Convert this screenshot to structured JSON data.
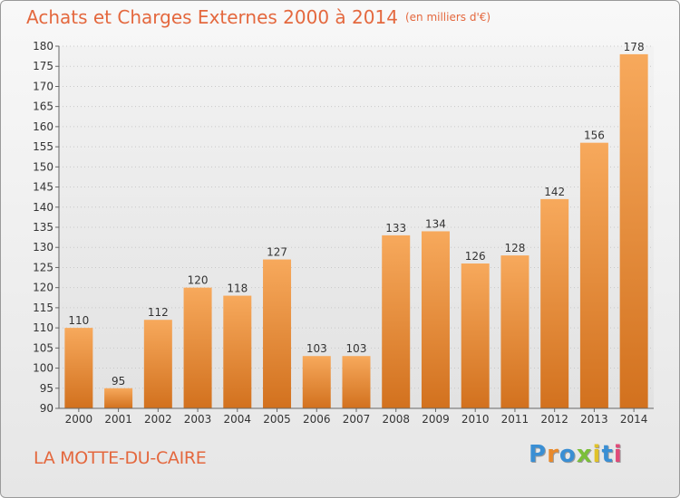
{
  "header": {
    "title": "Achats et Charges Externes 2000 à 2014",
    "unit": "(en milliers d'€)"
  },
  "footer": {
    "city": "LA MOTTE-DU-CAIRE",
    "logo_text": "Proxiti",
    "logo_colors": [
      "#3a8fd4",
      "#e98a2c",
      "#3a8fd4",
      "#7bbf3a",
      "#e0c22a",
      "#3a8fd4",
      "#e04a7a"
    ]
  },
  "chart_data": {
    "type": "bar",
    "title": "Achats et Charges Externes 2000 à 2014",
    "categories": [
      "2000",
      "2001",
      "2002",
      "2003",
      "2004",
      "2005",
      "2006",
      "2007",
      "2008",
      "2009",
      "2010",
      "2011",
      "2012",
      "2013",
      "2014"
    ],
    "values": [
      110,
      95,
      112,
      120,
      118,
      127,
      103,
      103,
      133,
      134,
      126,
      128,
      142,
      156,
      178
    ],
    "ylim": [
      90,
      180
    ],
    "yticks": [
      90,
      95,
      100,
      105,
      110,
      115,
      120,
      125,
      130,
      135,
      140,
      145,
      150,
      155,
      160,
      165,
      170,
      175,
      180
    ],
    "grid": true,
    "bar_color_top": "#f7a95c",
    "bar_color_bottom": "#d2711e"
  }
}
